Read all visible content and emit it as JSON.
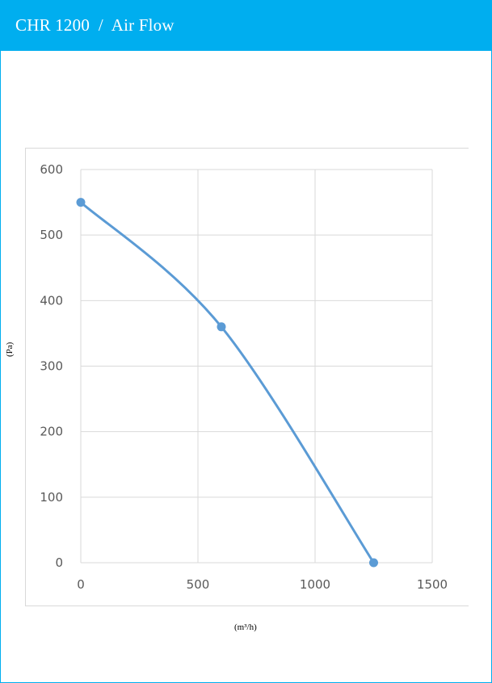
{
  "header": {
    "title": "CHR 1200  /  Air Flow"
  },
  "colors": {
    "accent": "#00aeef",
    "series": "#5b9bd5",
    "grid": "#d9d9d9"
  },
  "chart_data": {
    "type": "line",
    "title": "",
    "xlabel": "(m³/h)",
    "ylabel": "(Pa)",
    "xlim": [
      0,
      1500
    ],
    "ylim": [
      0,
      600
    ],
    "x_ticks": [
      "0",
      "500",
      "1000",
      "1500"
    ],
    "y_ticks": [
      "0",
      "100",
      "200",
      "300",
      "400",
      "500",
      "600"
    ],
    "grid": true,
    "smooth": true,
    "series": [
      {
        "x": [
          0,
          600,
          1250
        ],
        "y": [
          550,
          360,
          0
        ]
      }
    ]
  }
}
